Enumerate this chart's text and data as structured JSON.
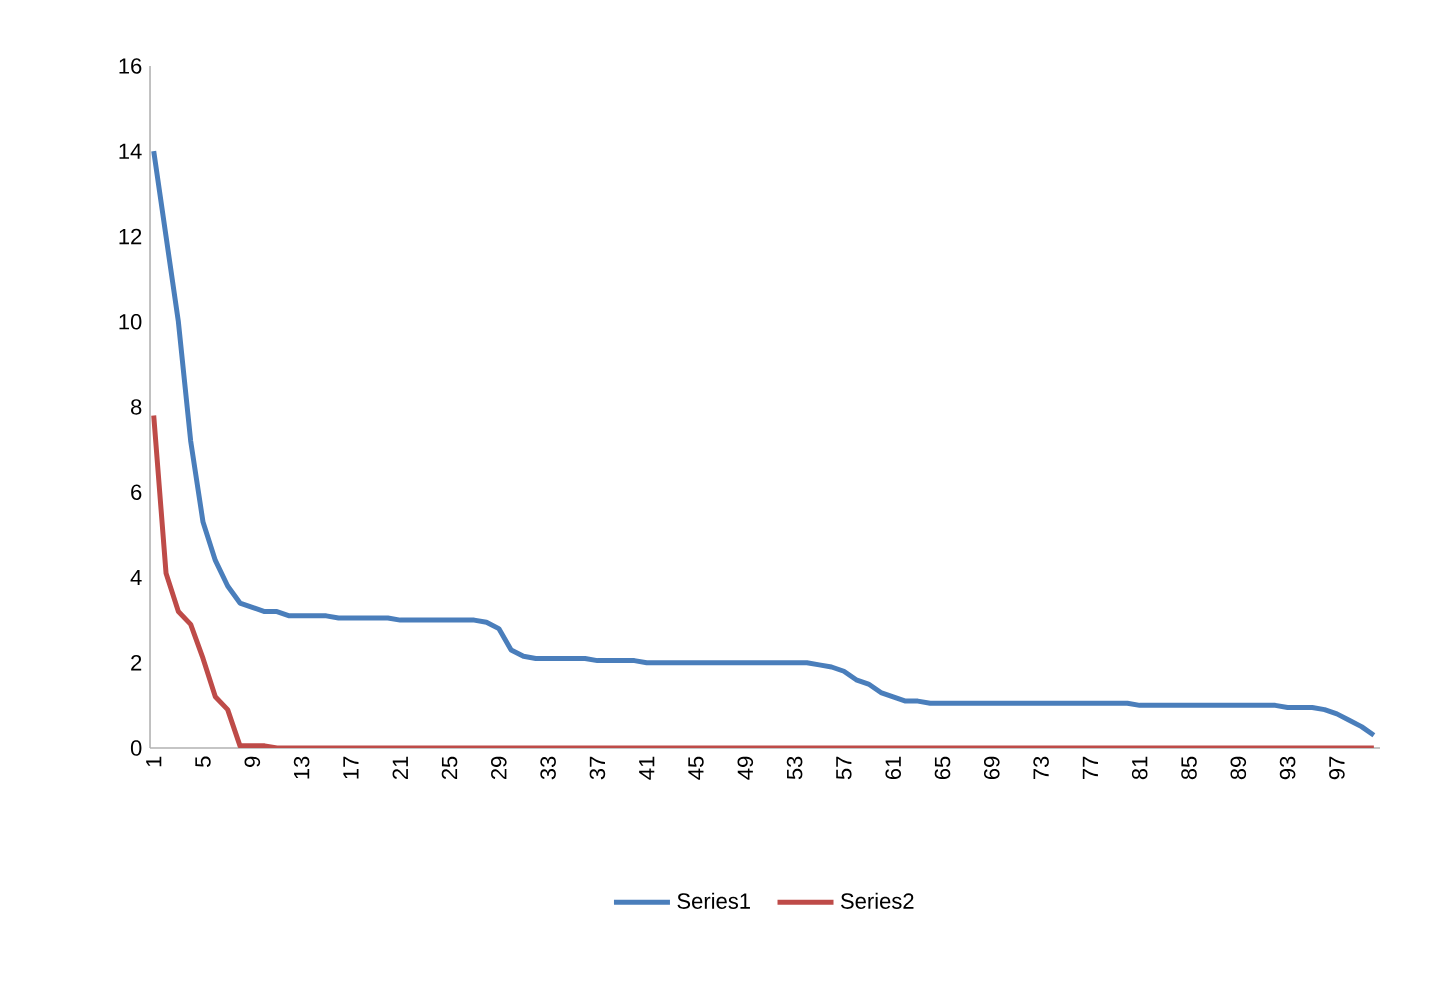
{
  "chart_data": {
    "type": "line",
    "categories": [
      "1",
      null,
      null,
      null,
      "5",
      null,
      null,
      null,
      "9",
      null,
      null,
      null,
      "13",
      null,
      null,
      null,
      "17",
      null,
      null,
      null,
      "21",
      null,
      null,
      null,
      "25",
      null,
      null,
      null,
      "29",
      null,
      null,
      null,
      "33",
      null,
      null,
      null,
      "37",
      null,
      null,
      null,
      "41",
      null,
      null,
      null,
      "45",
      null,
      null,
      null,
      "49",
      null,
      null,
      null,
      "53",
      null,
      null,
      null,
      "57",
      null,
      null,
      null,
      "61",
      null,
      null,
      null,
      "65",
      null,
      null,
      null,
      "69",
      null,
      null,
      null,
      "73",
      null,
      null,
      null,
      "77",
      null,
      null,
      null,
      "81",
      null,
      null,
      null,
      "85",
      null,
      null,
      null,
      "89",
      null,
      null,
      null,
      "93",
      null,
      null,
      null,
      "97",
      null,
      null,
      null
    ],
    "ylim": [
      0,
      16
    ],
    "yticks": [
      0,
      2,
      4,
      6,
      8,
      10,
      12,
      14,
      16
    ],
    "grid": false,
    "legend": "bottom",
    "marker": "none",
    "line_style": "solid",
    "series": [
      {
        "name": "Series1",
        "color": "#4a7ebb",
        "values": [
          14,
          12,
          10,
          7.2,
          5.3,
          4.4,
          3.8,
          3.4,
          3.3,
          3.2,
          3.2,
          3.1,
          3.1,
          3.1,
          3.1,
          3.05,
          3.05,
          3.05,
          3.05,
          3.05,
          3,
          3,
          3,
          3,
          3,
          3,
          3,
          2.95,
          2.8,
          2.3,
          2.15,
          2.1,
          2.1,
          2.1,
          2.1,
          2.1,
          2.05,
          2.05,
          2.05,
          2.05,
          2,
          2,
          2,
          2,
          2,
          2,
          2,
          2,
          2,
          2,
          2,
          2,
          2,
          2,
          1.95,
          1.9,
          1.8,
          1.6,
          1.5,
          1.3,
          1.2,
          1.1,
          1.1,
          1.05,
          1.05,
          1.05,
          1.05,
          1.05,
          1.05,
          1.05,
          1.05,
          1.05,
          1.05,
          1.05,
          1.05,
          1.05,
          1.05,
          1.05,
          1.05,
          1.05,
          1,
          1,
          1,
          1,
          1,
          1,
          1,
          1,
          1,
          1,
          1,
          1,
          0.95,
          0.95,
          0.95,
          0.9,
          0.8,
          0.65,
          0.5,
          0.3
        ]
      },
      {
        "name": "Series2",
        "color": "#be4b48",
        "values": [
          7.8,
          4.1,
          3.2,
          2.9,
          2.1,
          1.2,
          0.9,
          0.05,
          0.05,
          0.05,
          0,
          0,
          0,
          0,
          0,
          0,
          0,
          0,
          0,
          0,
          0,
          0,
          0,
          0,
          0,
          0,
          0,
          0,
          0,
          0,
          0,
          0,
          0,
          0,
          0,
          0,
          0,
          0,
          0,
          0,
          0,
          0,
          0,
          0,
          0,
          0,
          0,
          0,
          0,
          0,
          0,
          0,
          0,
          0,
          0,
          0,
          0,
          0,
          0,
          0,
          0,
          0,
          0,
          0,
          0,
          0,
          0,
          0,
          0,
          0,
          0,
          0,
          0,
          0,
          0,
          0,
          0,
          0,
          0,
          0,
          0,
          0,
          0,
          0,
          0,
          0,
          0,
          0,
          0,
          0,
          0,
          0,
          0,
          0,
          0,
          0,
          0,
          0,
          0,
          0
        ]
      }
    ]
  }
}
